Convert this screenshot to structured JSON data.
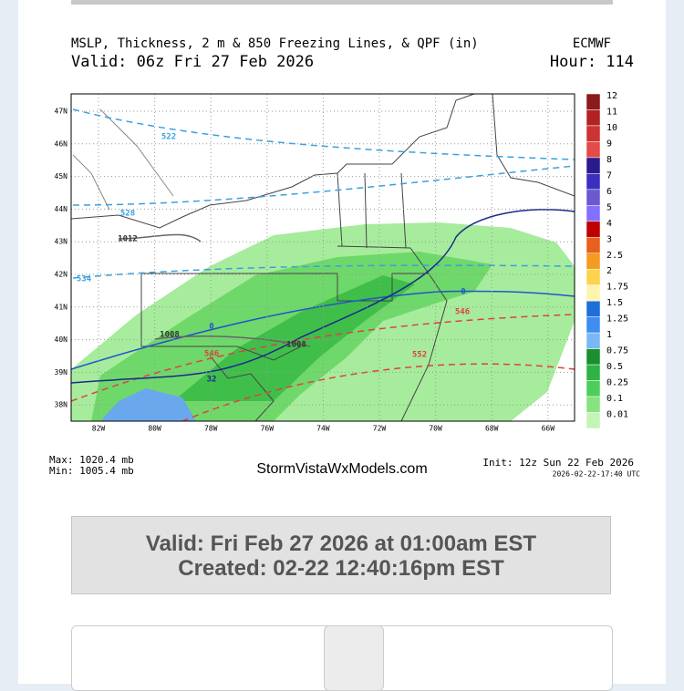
{
  "header": {
    "title": "MSLP, Thickness, 2 m & 850 Freezing Lines, & QPF (in)",
    "model": "ECMWF",
    "valid": "Valid: 06z Fri 27 Feb 2026",
    "hour": "Hour: 114"
  },
  "map": {
    "lat_labels": [
      "47N",
      "46N",
      "45N",
      "44N",
      "43N",
      "42N",
      "41N",
      "40N",
      "39N",
      "38N"
    ],
    "lon_labels": [
      "82W",
      "80W",
      "78W",
      "76W",
      "74W",
      "72W",
      "70W",
      "68W",
      "66W"
    ],
    "contour_labels": [
      "522",
      "528",
      "1012",
      "0",
      "1008",
      "1008",
      "546",
      "32",
      "546",
      "552",
      "0",
      "534"
    ]
  },
  "colorbar": {
    "labels": [
      "12",
      "11",
      "10",
      "9",
      "8",
      "7",
      "6",
      "5",
      "4",
      "3",
      "2.5",
      "2",
      "1.75",
      "1.5",
      "1.25",
      "1",
      "0.75",
      "0.5",
      "0.25",
      "0.1",
      "0.01"
    ],
    "colors": [
      "#8b1a1a",
      "#b22222",
      "#cd3333",
      "#e34a4a",
      "#2a1a8c",
      "#3b2fbf",
      "#6a5acd",
      "#8470ff",
      "#c00000",
      "#e8601c",
      "#f59a23",
      "#fcd34d",
      "#fff3b0",
      "#1e6fd9",
      "#3d8ef0",
      "#7ab8f5",
      "#1a8f2e",
      "#2fb344",
      "#4ccf5a",
      "#86e37d",
      "#c4f5b8"
    ]
  },
  "footer": {
    "max": "Max: 1020.4 mb",
    "min": "Min: 1005.4 mb",
    "site": "StormVistaWxModels.com",
    "init": "Init: 12z Sun 22 Feb 2026",
    "timestamp": "2026-02-22-17:40 UTC"
  },
  "info_box": {
    "valid": "Valid: Fri Feb 27 2026 at 01:00am EST",
    "created": "Created: 02-22 12:40:16pm EST"
  }
}
